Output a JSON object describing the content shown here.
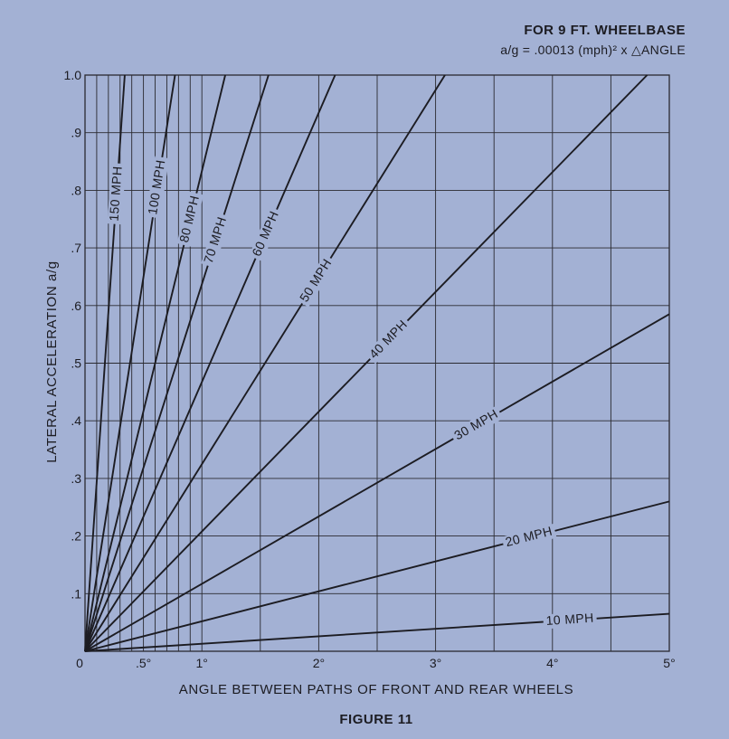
{
  "figure": {
    "caption": "FIGURE 11",
    "header_line1": "FOR 9 FT. WHEELBASE",
    "header_line2": "a/g = .00013 (mph)² x △ANGLE"
  },
  "colors": {
    "background": "#a3b1d4",
    "ink": "#1c1c22",
    "grid": "#2a2a30"
  },
  "chart_data": {
    "type": "line",
    "title": "",
    "xlabel": "ANGLE BETWEEN PATHS OF FRONT AND REAR WHEELS",
    "ylabel": "LATERAL ACCELERATION a/g",
    "xlim": [
      0,
      5
    ],
    "ylim": [
      0,
      1.0
    ],
    "grid": true,
    "x_ticks": [
      {
        "value": 0,
        "label": "0"
      },
      {
        "value": 0.5,
        "label": ".5°"
      },
      {
        "value": 1,
        "label": "1°"
      },
      {
        "value": 2,
        "label": "2°"
      },
      {
        "value": 3,
        "label": "3°"
      },
      {
        "value": 4,
        "label": "4°"
      },
      {
        "value": 5,
        "label": "5°"
      }
    ],
    "y_ticks": [
      {
        "value": 0.1,
        "label": ".1"
      },
      {
        "value": 0.2,
        "label": ".2"
      },
      {
        "value": 0.3,
        "label": ".3"
      },
      {
        "value": 0.4,
        "label": ".4"
      },
      {
        "value": 0.5,
        "label": ".5"
      },
      {
        "value": 0.6,
        "label": ".6"
      },
      {
        "value": 0.7,
        "label": ".7"
      },
      {
        "value": 0.8,
        "label": ".8"
      },
      {
        "value": 0.9,
        "label": ".9"
      },
      {
        "value": 1.0,
        "label": "1.0"
      }
    ],
    "x_minor_gridlines": [
      0.1,
      0.2,
      0.3,
      0.4,
      0.5,
      0.6,
      0.7,
      0.8,
      0.9,
      1.0,
      1.5,
      2.0,
      2.5,
      3.0,
      3.5,
      4.0,
      4.5,
      5.0
    ],
    "y_gridlines": [
      0.1,
      0.2,
      0.3,
      0.4,
      0.5,
      0.6,
      0.7,
      0.8,
      0.9,
      1.0
    ],
    "series": [
      {
        "name": "10 MPH",
        "mph": 10,
        "x": [
          0,
          5
        ],
        "y": [
          0,
          0.065
        ],
        "label_at_x": 4.15
      },
      {
        "name": "20 MPH",
        "mph": 20,
        "x": [
          0,
          5
        ],
        "y": [
          0,
          0.26
        ],
        "label_at_x": 3.8
      },
      {
        "name": "30 MPH",
        "mph": 30,
        "x": [
          0,
          5
        ],
        "y": [
          0,
          0.585
        ],
        "label_at_x": 3.35
      },
      {
        "name": "40 MPH",
        "mph": 40,
        "x": [
          0,
          4.81
        ],
        "y": [
          0,
          1.0
        ],
        "label_at_x": 2.6
      },
      {
        "name": "50 MPH",
        "mph": 50,
        "x": [
          0,
          3.08
        ],
        "y": [
          0,
          1.0
        ],
        "label_at_x": 1.98
      },
      {
        "name": "60 MPH",
        "mph": 60,
        "x": [
          0,
          2.14
        ],
        "y": [
          0,
          1.0
        ],
        "label_at_x": 1.55
      },
      {
        "name": "70 MPH",
        "mph": 70,
        "x": [
          0,
          1.57
        ],
        "y": [
          0,
          1.0
        ],
        "label_at_x": 1.12
      },
      {
        "name": "80 MPH",
        "mph": 80,
        "x": [
          0,
          1.2
        ],
        "y": [
          0,
          1.0
        ],
        "label_at_x": 0.9
      },
      {
        "name": "100 MPH",
        "mph": 100,
        "x": [
          0,
          0.77
        ],
        "y": [
          0,
          1.0
        ],
        "label_at_x": 0.62
      },
      {
        "name": "150 MPH",
        "mph": 150,
        "x": [
          0,
          0.34
        ],
        "y": [
          0,
          1.0
        ],
        "label_at_x": 0.27
      }
    ]
  }
}
